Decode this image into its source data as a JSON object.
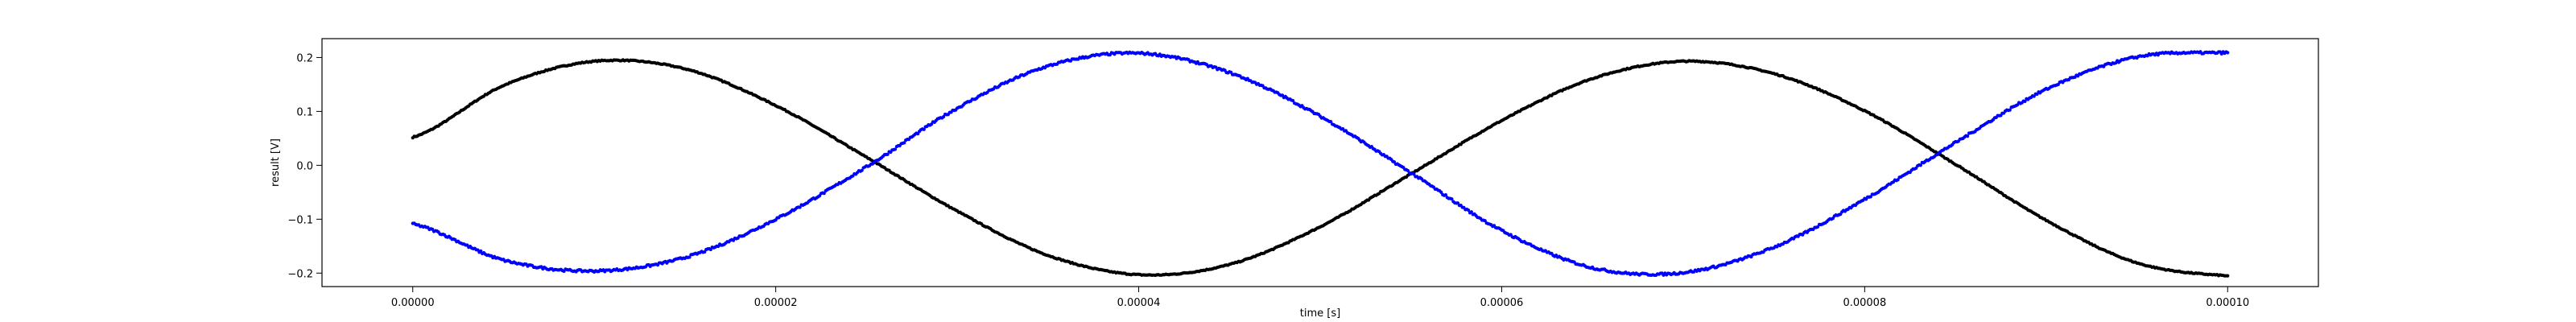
{
  "chart_data": {
    "type": "scatter",
    "title": "",
    "xlabel": "time [s]",
    "ylabel": "result [V]",
    "xlim": [
      -5e-06,
      0.000105
    ],
    "ylim": [
      -0.225,
      0.235
    ],
    "grid": false,
    "x_ticks": [
      0,
      2e-05,
      4e-05,
      6e-05,
      8e-05,
      0.0001
    ],
    "x_tick_labels": [
      "0.00000",
      "0.00002",
      "0.00004",
      "0.00006",
      "0.00008",
      "0.00010"
    ],
    "y_ticks": [
      -0.2,
      -0.1,
      0.0,
      0.1,
      0.2
    ],
    "y_tick_labels": [
      "−0.2",
      "−0.1",
      "0.0",
      "0.1",
      "0.2"
    ],
    "series": [
      {
        "color": "#000000",
        "x": [
          0,
          5e-06,
          1e-05,
          1.5e-05,
          2e-05,
          2.5e-05,
          3e-05,
          3.5e-05,
          4e-05,
          4.5e-05,
          5e-05,
          5.5e-05,
          6e-05,
          6.5e-05,
          7e-05,
          7.5e-05,
          8e-05,
          8.5e-05,
          9e-05,
          9.5e-05,
          0.0001
        ],
        "y": [
          0.052,
          0.148,
          0.193,
          0.179,
          0.111,
          0.015,
          -0.085,
          -0.167,
          -0.203,
          -0.184,
          -0.114,
          -0.016,
          0.083,
          0.161,
          0.193,
          0.17,
          0.101,
          0.002,
          -0.102,
          -0.181,
          -0.205
        ]
      },
      {
        "color": "#0000ff",
        "x": [
          0,
          5e-06,
          1e-05,
          1.5e-05,
          2e-05,
          2.5e-05,
          3e-05,
          3.5e-05,
          4e-05,
          4.5e-05,
          5e-05,
          5.5e-05,
          6e-05,
          6.5e-05,
          7e-05,
          7.5e-05,
          8e-05,
          8.5e-05,
          9e-05,
          9.5e-05,
          0.0001
        ],
        "y": [
          -0.109,
          -0.176,
          -0.196,
          -0.171,
          -0.1,
          -0.003,
          0.106,
          0.184,
          0.208,
          0.172,
          0.091,
          -0.014,
          -0.121,
          -0.19,
          -0.199,
          -0.152,
          -0.063,
          0.042,
          0.141,
          0.201,
          0.209
        ]
      }
    ]
  }
}
